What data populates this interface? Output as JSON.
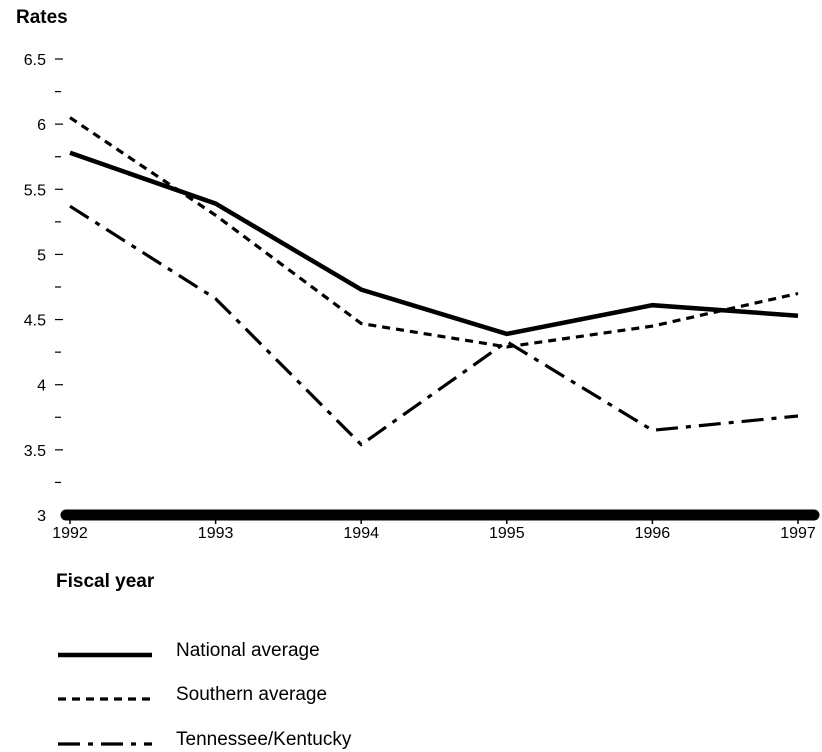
{
  "chart_data": {
    "type": "line",
    "ylabel": "Rates",
    "xlabel": "Fiscal year",
    "x": [
      "1992",
      "1993",
      "1994",
      "1995",
      "1996",
      "1997"
    ],
    "ylim": [
      3,
      6.5
    ],
    "y_ticks": [
      "6.5",
      "6",
      "5.5",
      "5",
      "4.5",
      "4",
      "3.5",
      "3"
    ],
    "grid": false,
    "legend_position": "bottom-left",
    "series": [
      {
        "name": "National average",
        "style": "solid",
        "color": "#000000",
        "values": [
          5.78,
          5.39,
          4.73,
          4.39,
          4.61,
          4.53
        ]
      },
      {
        "name": "Southern average",
        "style": "dashed",
        "color": "#000000",
        "values": [
          6.05,
          5.3,
          4.47,
          4.29,
          4.45,
          4.7
        ]
      },
      {
        "name": "Tennessee/Kentucky",
        "style": "dash-dot",
        "color": "#000000",
        "values": [
          5.37,
          4.66,
          3.54,
          4.33,
          3.65,
          3.76
        ]
      }
    ]
  }
}
